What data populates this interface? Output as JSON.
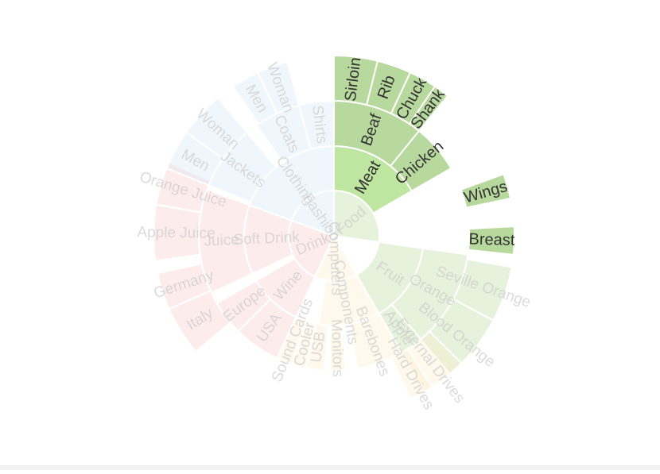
{
  "chart_data": {
    "type": "sunburst",
    "highlighted_path": [
      "Food",
      "Meat"
    ],
    "tree": [
      {
        "name": "Food",
        "color": "#b7d99c",
        "children": [
          {
            "name": "Meat",
            "color": "#bde6a0",
            "children": [
              {
                "name": "Beaf",
                "children": [
                  {
                    "name": "Sirloin"
                  },
                  {
                    "name": "Rib"
                  },
                  {
                    "name": "Chuck"
                  },
                  {
                    "name": "Shank"
                  }
                ]
              },
              {
                "name": "Chicken",
                "children": [
                  {
                    "name": "Wings"
                  },
                  {
                    "name": "Breast"
                  }
                ]
              }
            ]
          },
          {
            "name": "Fruit",
            "children": [
              {
                "name": "Orange",
                "children": [
                  {
                    "name": "Seville Orange"
                  },
                  {
                    "name": "Blood Orange"
                  }
                ]
              },
              {
                "name": "Apple"
              }
            ]
          }
        ]
      },
      {
        "name": "Computers",
        "color": "#fbeec9",
        "children": [
          {
            "name": "Components",
            "children": [
              {
                "name": "Barebones"
              },
              {
                "name": "External Drives"
              },
              {
                "name": "Hard Drives"
              }
            ]
          },
          {
            "name": "Monitors"
          },
          {
            "name": "USB"
          },
          {
            "name": "Cooler"
          },
          {
            "name": "Sound Cards"
          }
        ]
      },
      {
        "name": "Drink",
        "color": "#f5c9c9",
        "children": [
          {
            "name": "Wine",
            "children": [
              {
                "name": "USA"
              },
              {
                "name": "Europe",
                "children": [
                  {
                    "name": "Italy"
                  },
                  {
                    "name": "Germany"
                  }
                ]
              }
            ]
          },
          {
            "name": "Soft Drink",
            "children": [
              {
                "name": "Juice",
                "children": [
                  {
                    "name": "Apple Juice"
                  },
                  {
                    "name": "Orange Juice"
                  }
                ]
              }
            ]
          }
        ]
      },
      {
        "name": "Fashion",
        "color": "#d5e8f5",
        "children": [
          {
            "name": "Clothing",
            "children": [
              {
                "name": "Jackets",
                "children": [
                  {
                    "name": "Men"
                  },
                  {
                    "name": "Woman"
                  }
                ]
              },
              {
                "name": "Coats",
                "children": [
                  {
                    "name": "Men"
                  },
                  {
                    "name": "Woman"
                  }
                ]
              },
              {
                "name": "Shirts"
              }
            ]
          }
        ]
      }
    ]
  }
}
